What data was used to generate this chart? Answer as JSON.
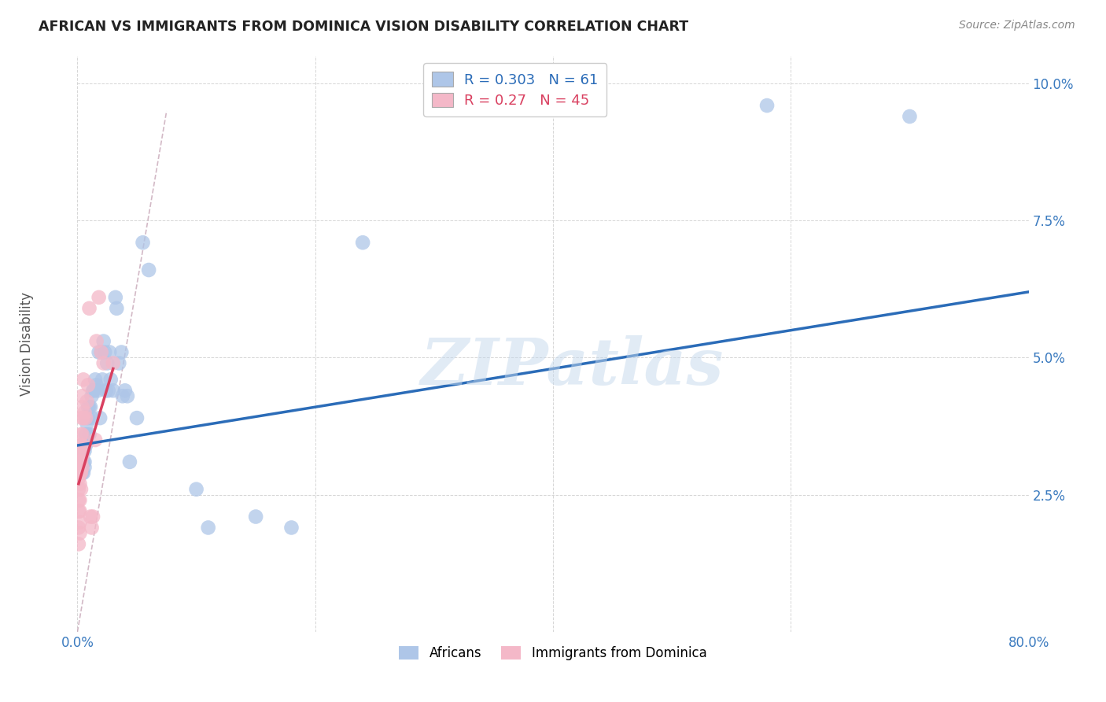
{
  "title": "AFRICAN VS IMMIGRANTS FROM DOMINICA VISION DISABILITY CORRELATION CHART",
  "source": "Source: ZipAtlas.com",
  "ylabel": "Vision Disability",
  "watermark": "ZIPatlas",
  "africans_R": 0.303,
  "africans_N": 61,
  "dominica_R": 0.27,
  "dominica_N": 45,
  "africans_color": "#aec6e8",
  "dominica_color": "#f4b8c8",
  "africans_line_color": "#2b6cb8",
  "dominica_line_color": "#d94060",
  "africans_x": [
    0.001,
    0.001,
    0.002,
    0.002,
    0.003,
    0.003,
    0.003,
    0.004,
    0.004,
    0.005,
    0.005,
    0.005,
    0.006,
    0.006,
    0.006,
    0.007,
    0.007,
    0.008,
    0.008,
    0.009,
    0.009,
    0.01,
    0.01,
    0.011,
    0.012,
    0.012,
    0.013,
    0.014,
    0.015,
    0.016,
    0.017,
    0.018,
    0.019,
    0.02,
    0.021,
    0.022,
    0.023,
    0.024,
    0.025,
    0.026,
    0.027,
    0.028,
    0.03,
    0.032,
    0.033,
    0.035,
    0.037,
    0.038,
    0.04,
    0.042,
    0.044,
    0.05,
    0.055,
    0.06,
    0.1,
    0.11,
    0.15,
    0.18,
    0.24,
    0.58,
    0.7
  ],
  "africans_y": [
    0.033,
    0.031,
    0.031,
    0.03,
    0.032,
    0.031,
    0.029,
    0.031,
    0.029,
    0.033,
    0.031,
    0.029,
    0.033,
    0.031,
    0.03,
    0.036,
    0.034,
    0.036,
    0.038,
    0.039,
    0.041,
    0.036,
    0.041,
    0.041,
    0.043,
    0.039,
    0.044,
    0.044,
    0.046,
    0.045,
    0.044,
    0.051,
    0.039,
    0.051,
    0.046,
    0.053,
    0.051,
    0.044,
    0.049,
    0.044,
    0.051,
    0.046,
    0.044,
    0.061,
    0.059,
    0.049,
    0.051,
    0.043,
    0.044,
    0.043,
    0.031,
    0.039,
    0.071,
    0.066,
    0.026,
    0.019,
    0.021,
    0.019,
    0.071,
    0.096,
    0.094
  ],
  "dominica_x": [
    0.001,
    0.001,
    0.001,
    0.001,
    0.001,
    0.001,
    0.001,
    0.001,
    0.001,
    0.002,
    0.002,
    0.002,
    0.002,
    0.002,
    0.002,
    0.002,
    0.002,
    0.003,
    0.003,
    0.003,
    0.003,
    0.003,
    0.004,
    0.004,
    0.004,
    0.004,
    0.004,
    0.004,
    0.004,
    0.005,
    0.005,
    0.006,
    0.007,
    0.008,
    0.009,
    0.01,
    0.011,
    0.012,
    0.013,
    0.015,
    0.016,
    0.018,
    0.02,
    0.022,
    0.03
  ],
  "dominica_y": [
    0.033,
    0.031,
    0.03,
    0.028,
    0.026,
    0.024,
    0.022,
    0.019,
    0.016,
    0.033,
    0.031,
    0.029,
    0.027,
    0.024,
    0.022,
    0.02,
    0.018,
    0.036,
    0.034,
    0.031,
    0.029,
    0.026,
    0.043,
    0.041,
    0.039,
    0.036,
    0.034,
    0.032,
    0.03,
    0.046,
    0.039,
    0.04,
    0.039,
    0.042,
    0.045,
    0.059,
    0.021,
    0.019,
    0.021,
    0.035,
    0.053,
    0.061,
    0.051,
    0.049,
    0.049
  ],
  "xlim": [
    0.0,
    0.8
  ],
  "ylim": [
    0.0,
    0.105
  ],
  "xticks": [
    0.0,
    0.2,
    0.4,
    0.6,
    0.8
  ],
  "yticks": [
    0.0,
    0.025,
    0.05,
    0.075,
    0.1
  ],
  "ytick_labels": [
    "",
    "2.5%",
    "5.0%",
    "7.5%",
    "10.0%"
  ],
  "xtick_labels": [
    "0.0%",
    "",
    "",
    "",
    "80.0%"
  ],
  "background_color": "#ffffff",
  "grid_color": "#cccccc",
  "africans_line_x": [
    0.0,
    0.8
  ],
  "africans_line_y": [
    0.034,
    0.062
  ],
  "dominica_line_x": [
    0.001,
    0.03
  ],
  "dominica_line_y": [
    0.027,
    0.048
  ],
  "dash_line_x": [
    0.0,
    0.075
  ],
  "dash_line_y": [
    0.0,
    0.095
  ]
}
